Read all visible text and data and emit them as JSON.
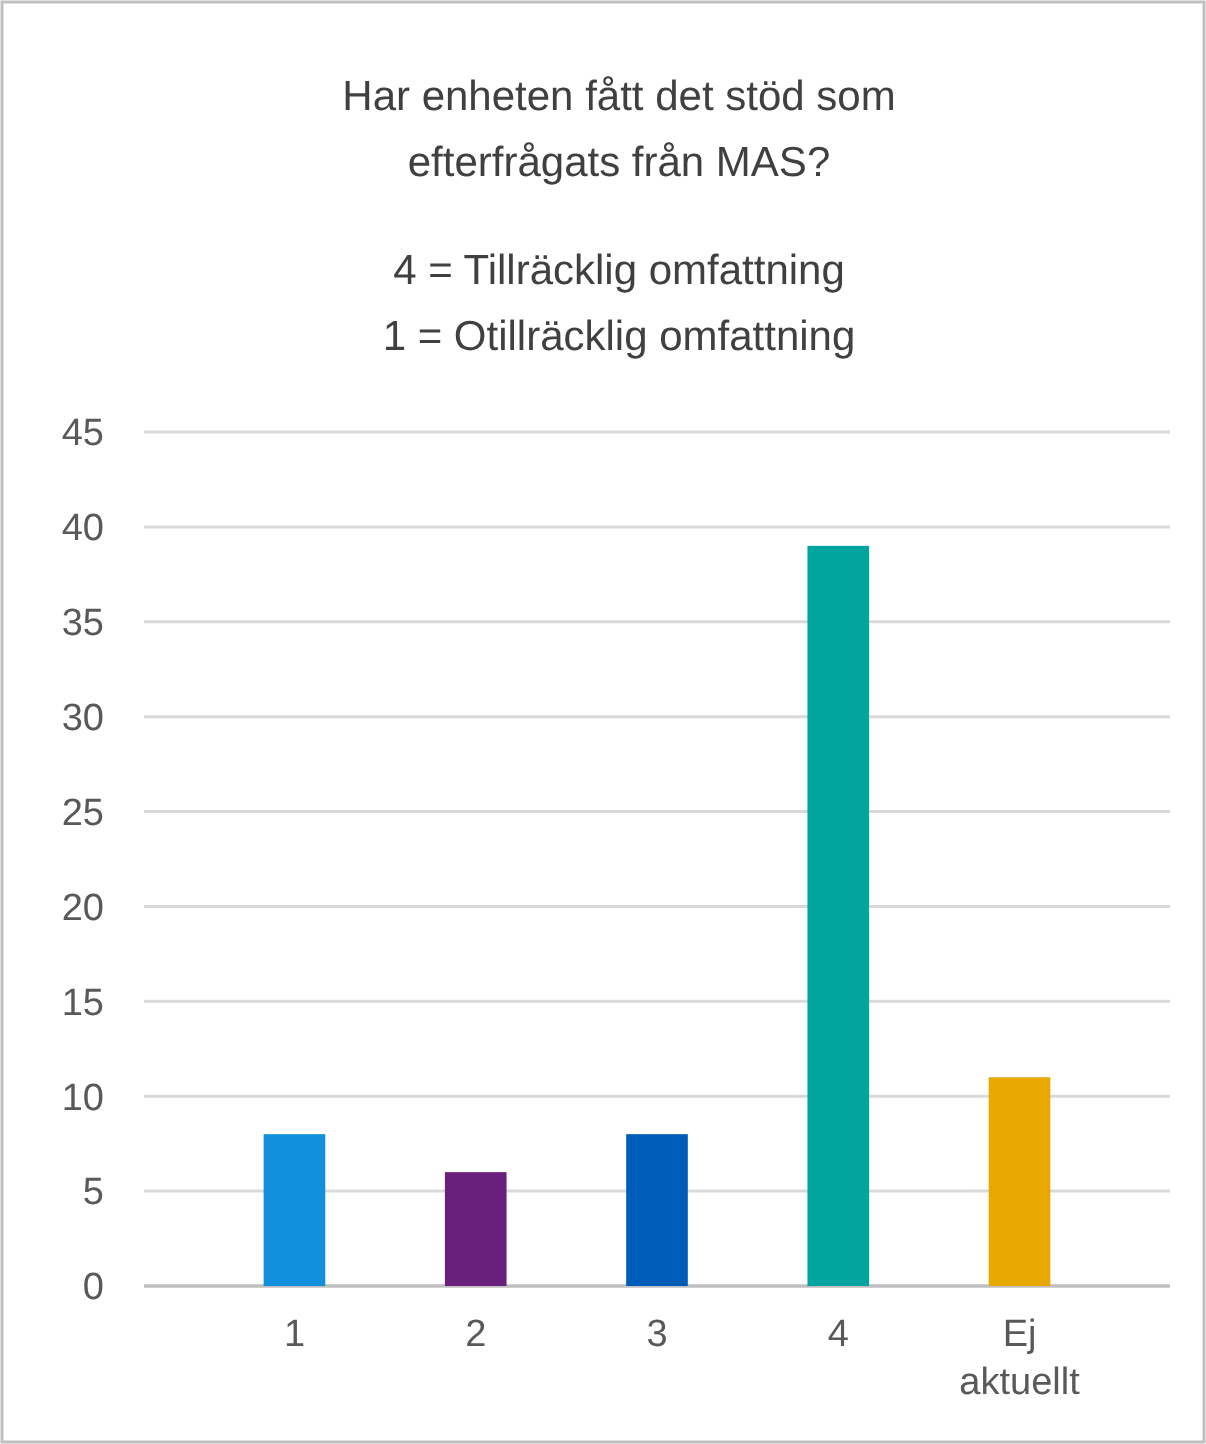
{
  "chart_data": {
    "type": "bar",
    "title": "Har enheten fått det stöd som\nefterfrågats från MAS?",
    "subtitle": "4 = Tillräcklig omfattning\n1 = Otillräcklig omfattning",
    "categories": [
      "1",
      "2",
      "3",
      "4",
      "Ej aktuellt"
    ],
    "values": [
      8,
      6,
      8,
      39,
      11
    ],
    "colors": [
      "#0f8fdc",
      "#6b1f7c",
      "#005cb9",
      "#00a5a0",
      "#e8a800"
    ],
    "ylim": [
      0,
      45
    ],
    "yticks": [
      0,
      5,
      10,
      15,
      20,
      25,
      30,
      35,
      40,
      45
    ],
    "grid": "y"
  }
}
